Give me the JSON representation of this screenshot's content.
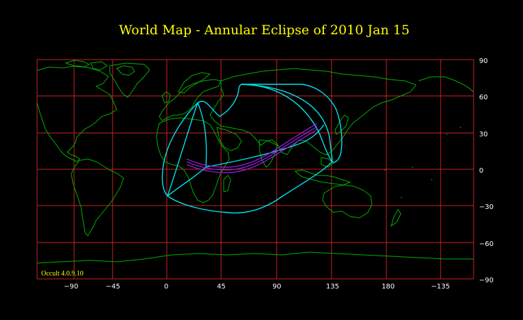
{
  "title": "World Map  -  Annular  Eclipse  of  2010 Jan 15",
  "software_label": "Occult 4.0.9.10",
  "x_tick_labels": [
    "−90",
    "−45",
    "0",
    "45",
    "90",
    "135",
    "180",
    "−135"
  ],
  "y_tick_labels": [
    "90",
    "60",
    "30",
    "0",
    "−30",
    "−60",
    "−90"
  ],
  "colors": {
    "background": "#000000",
    "title": "#ffff00",
    "grid": "#cc2222",
    "coastline": "#00b000",
    "penumbral_limits": "#00e5ee",
    "annular_path": "#a020f0",
    "tick_labels": "#ffffff"
  },
  "map": {
    "projection": "equirectangular",
    "longitude_range": [
      -112.5,
      247.5
    ],
    "latitude_range": [
      -90,
      90
    ],
    "grid_step_degrees": 45,
    "latitude_grid_step_degrees": 30
  }
}
